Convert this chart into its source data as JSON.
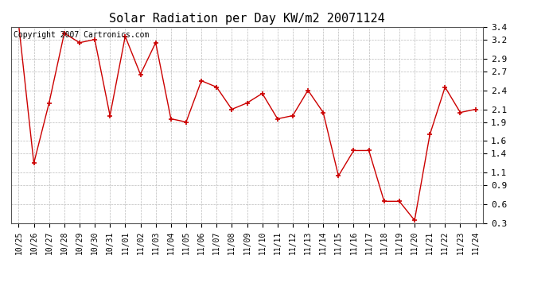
{
  "title": "Solar Radiation per Day KW/m2 20071124",
  "copyright_text": "Copyright 2007 Cartronics.com",
  "labels": [
    "10/25",
    "10/26",
    "10/27",
    "10/28",
    "10/29",
    "10/30",
    "10/31",
    "11/01",
    "11/02",
    "11/03",
    "11/04",
    "11/05",
    "11/06",
    "11/07",
    "11/08",
    "11/09",
    "11/10",
    "11/11",
    "11/12",
    "11/13",
    "11/14",
    "11/15",
    "11/16",
    "11/17",
    "11/18",
    "11/19",
    "11/20",
    "11/21",
    "11/22",
    "11/23",
    "11/24"
  ],
  "values": [
    3.45,
    1.25,
    2.2,
    3.3,
    3.15,
    3.2,
    2.0,
    3.25,
    2.65,
    3.15,
    1.95,
    1.9,
    2.55,
    2.45,
    2.1,
    2.2,
    2.35,
    1.95,
    2.0,
    2.4,
    2.05,
    1.05,
    1.45,
    1.45,
    0.65,
    0.65,
    0.35,
    1.7,
    2.45,
    2.05,
    2.1
  ],
  "ylim": [
    0.3,
    3.4
  ],
  "yticks": [
    0.3,
    0.6,
    0.9,
    1.1,
    1.4,
    1.6,
    1.9,
    2.1,
    2.4,
    2.7,
    2.9,
    3.2,
    3.4
  ],
  "line_color": "#cc0000",
  "marker": "+",
  "marker_size": 5,
  "marker_edge_width": 1.2,
  "line_width": 1.0,
  "bg_color": "#ffffff",
  "grid_color": "#bbbbbb",
  "title_fontsize": 11,
  "tick_fontsize": 7,
  "copyright_fontsize": 7
}
